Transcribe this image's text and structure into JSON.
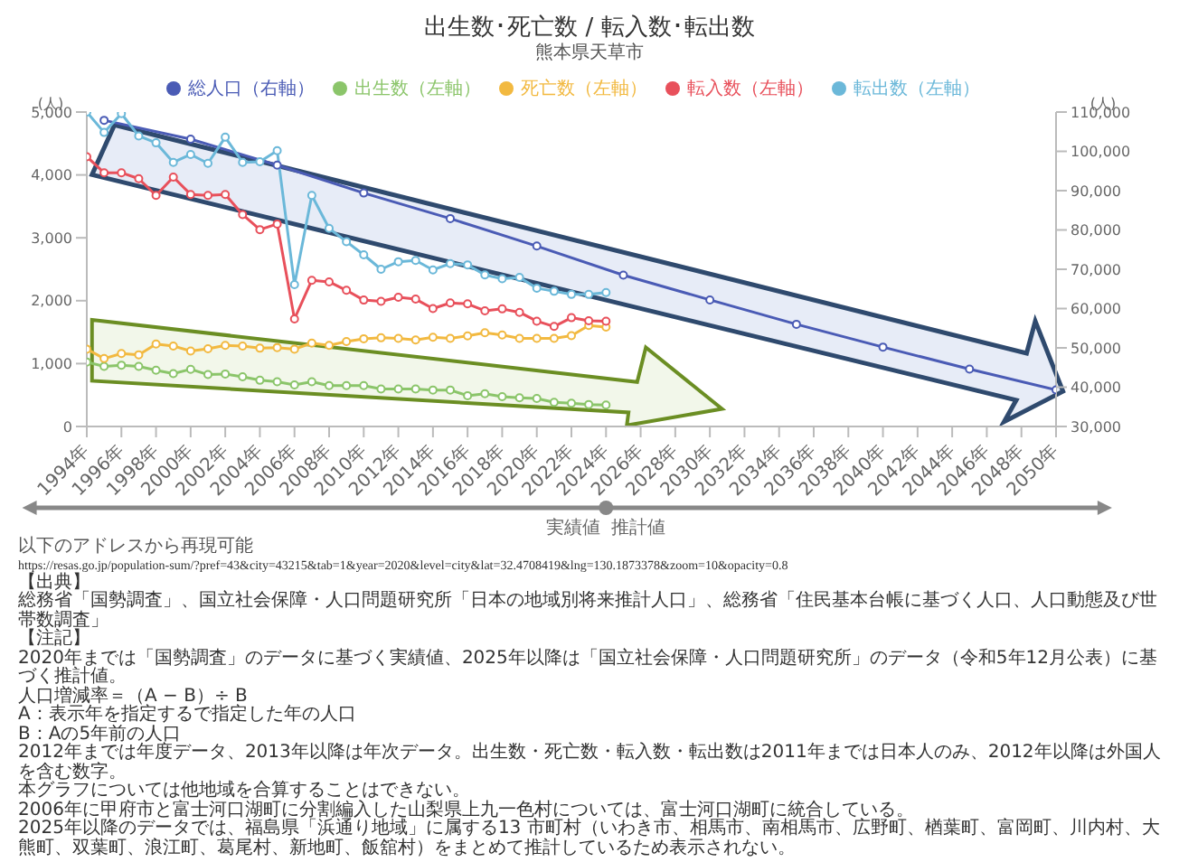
{
  "chart_data": {
    "type": "line",
    "title": "出生数･死亡数 / 転入数･転出数",
    "subtitle": "熊本県天草市",
    "ylabel": "(人)",
    "y2label": "(人)",
    "legend": "top",
    "marker": "circle",
    "grid": false,
    "xlim": [
      1994,
      2050
    ],
    "xticks": [
      {
        "value": 1994,
        "label": "1994年"
      },
      {
        "value": 1996,
        "label": "1996年"
      },
      {
        "value": 1998,
        "label": "1998年"
      },
      {
        "value": 2000,
        "label": "2000年"
      },
      {
        "value": 2002,
        "label": "2002年"
      },
      {
        "value": 2004,
        "label": "2004年"
      },
      {
        "value": 2006,
        "label": "2006年"
      },
      {
        "value": 2008,
        "label": "2008年"
      },
      {
        "value": 2010,
        "label": "2010年"
      },
      {
        "value": 2012,
        "label": "2012年"
      },
      {
        "value": 2014,
        "label": "2014年"
      },
      {
        "value": 2016,
        "label": "2016年"
      },
      {
        "value": 2018,
        "label": "2018年"
      },
      {
        "value": 2020,
        "label": "2020年"
      },
      {
        "value": 2022,
        "label": "2022年"
      },
      {
        "value": 2024,
        "label": "2024年"
      },
      {
        "value": 2026,
        "label": "2026年"
      },
      {
        "value": 2028,
        "label": "2028年"
      },
      {
        "value": 2030,
        "label": "2030年"
      },
      {
        "value": 2032,
        "label": "2032年"
      },
      {
        "value": 2034,
        "label": "2034年"
      },
      {
        "value": 2036,
        "label": "2036年"
      },
      {
        "value": 2038,
        "label": "2038年"
      },
      {
        "value": 2040,
        "label": "2040年"
      },
      {
        "value": 2042,
        "label": "2042年"
      },
      {
        "value": 2044,
        "label": "2044年"
      },
      {
        "value": 2046,
        "label": "2046年"
      },
      {
        "value": 2048,
        "label": "2048年"
      },
      {
        "value": 2050,
        "label": "2050年"
      }
    ],
    "ylim": [
      0,
      5000
    ],
    "yticks": [
      0,
      {
        "value": 1000,
        "label": "1,000"
      },
      {
        "value": 2000,
        "label": "2,000"
      },
      {
        "value": 3000,
        "label": "3,000"
      },
      {
        "value": 4000,
        "label": "4,000"
      },
      {
        "value": 5000,
        "label": "5,000"
      }
    ],
    "y2lim": [
      30000,
      110000
    ],
    "y2ticks": [
      {
        "value": 30000,
        "label": "30,000"
      },
      {
        "value": 40000,
        "label": "40,000"
      },
      {
        "value": 50000,
        "label": "50,000"
      },
      {
        "value": 60000,
        "label": "60,000"
      },
      {
        "value": 70000,
        "label": "70,000"
      },
      {
        "value": 80000,
        "label": "80,000"
      },
      {
        "value": 90000,
        "label": "90,000"
      },
      {
        "value": 100000,
        "label": "100,000"
      },
      {
        "value": 110000,
        "label": "110,000"
      }
    ],
    "series": [
      {
        "name": "総人口（右軸）",
        "color": "#4a5bb5",
        "axis": "y2",
        "x": [
          1995,
          2000,
          2005,
          2010,
          2015,
          2020,
          2025,
          2030,
          2035,
          2040,
          2045,
          2050
        ],
        "values": [
          107900,
          103100,
          96500,
          89400,
          82900,
          75900,
          68500,
          62200,
          56000,
          50200,
          44600,
          39300
        ]
      },
      {
        "name": "出生数（左軸）",
        "color": "#8bc56a",
        "x": [
          1994,
          1995,
          1996,
          1997,
          1998,
          1999,
          2000,
          2001,
          2002,
          2003,
          2004,
          2005,
          2006,
          2007,
          2008,
          2009,
          2010,
          2011,
          2012,
          2013,
          2014,
          2015,
          2016,
          2017,
          2018,
          2019,
          2020,
          2021,
          2022,
          2023,
          2024
        ],
        "values": [
          1025,
          955,
          975,
          955,
          895,
          840,
          910,
          825,
          835,
          790,
          735,
          710,
          660,
          710,
          650,
          650,
          650,
          595,
          595,
          595,
          580,
          580,
          490,
          520,
          475,
          455,
          445,
          385,
          370,
          350,
          340
        ]
      },
      {
        "name": "死亡数（左軸）",
        "color": "#f2b940",
        "x": [
          1994,
          1995,
          1996,
          1997,
          1998,
          1999,
          2000,
          2001,
          2002,
          2003,
          2004,
          2005,
          2006,
          2007,
          2008,
          2009,
          2010,
          2011,
          2012,
          2013,
          2014,
          2015,
          2016,
          2017,
          2018,
          2019,
          2020,
          2021,
          2022,
          2023,
          2024
        ],
        "values": [
          1230,
          1080,
          1160,
          1140,
          1310,
          1280,
          1200,
          1235,
          1290,
          1280,
          1245,
          1255,
          1230,
          1325,
          1290,
          1350,
          1395,
          1410,
          1400,
          1375,
          1420,
          1400,
          1440,
          1490,
          1455,
          1400,
          1400,
          1400,
          1445,
          1605,
          1580
        ]
      },
      {
        "name": "転入数（左軸）",
        "color": "#e8505b",
        "x": [
          1994,
          1995,
          1996,
          1997,
          1998,
          1999,
          2000,
          2001,
          2002,
          2003,
          2004,
          2005,
          2006,
          2007,
          2008,
          2009,
          2010,
          2011,
          2012,
          2013,
          2014,
          2015,
          2016,
          2017,
          2018,
          2019,
          2020,
          2021,
          2022,
          2023,
          2024
        ],
        "values": [
          4290,
          4035,
          4035,
          3940,
          3675,
          3965,
          3690,
          3675,
          3690,
          3370,
          3130,
          3220,
          1710,
          2325,
          2300,
          2165,
          2010,
          1990,
          2055,
          2025,
          1875,
          1965,
          1950,
          1840,
          1870,
          1815,
          1675,
          1590,
          1730,
          1680,
          1675
        ]
      },
      {
        "name": "転出数（左軸）",
        "color": "#6bb8d9",
        "x": [
          1994,
          1995,
          1996,
          1997,
          1998,
          1999,
          2000,
          2001,
          2002,
          2003,
          2004,
          2005,
          2006,
          2007,
          2008,
          2009,
          2010,
          2011,
          2012,
          2013,
          2014,
          2015,
          2016,
          2017,
          2018,
          2019,
          2020,
          2021,
          2022,
          2023,
          2024
        ],
        "values": [
          5000,
          4675,
          4975,
          4620,
          4510,
          4200,
          4325,
          4185,
          4600,
          4200,
          4210,
          4385,
          2255,
          3675,
          3150,
          2940,
          2730,
          2500,
          2620,
          2640,
          2490,
          2590,
          2570,
          2410,
          2350,
          2370,
          2200,
          2150,
          2100,
          2100,
          2130
        ]
      }
    ],
    "annotations": [
      "実績値",
      "推計値",
      "以下のアドレスから再現可能",
      "https://resas.go.jp/population-sum/?pref=43&city=43215&tab=1&year=2020&level=city&lat=32.4708419&lng=130.1873378&zoom=10&opacity=0.8",
      "【出典】",
      "総務省「国勢調査」、国立社会保障・人口問題研究所「日本の地域別将来推計人口」、総務省「住民基本台帳に基づく人口、人口動態及び世帯数調査」",
      "【注記】",
      "2020年までは「国勢調査」のデータに基づく実績値、2025年以降は「国立社会保障・人口問題研究所」のデータ（令和5年12月公表）に基づく推計値。",
      "人口増減率＝（A − B）÷ B",
      "A：表示年を指定するで指定した年の人口",
      "B：Aの5年前の人口",
      "2012年までは年度データ、2013年以降は年次データ。出生数・死亡数・転入数・転出数は2011年までは日本人のみ、2012年以降は外国人を含む数字。",
      "本グラフについては他地域を合算することはできない。",
      "2006年に甲府市と富士河口湖町に分割編入した山梨県上九一色村については、富士河口湖町に統合している。",
      "2025年以降のデータでは、福島県「浜通り地域」に属する13 市町村（いわき市、相馬市、南相馬市、広野町、楢葉町、富岡町、川内村、大熊町、双葉町、浪江町、葛尾村、新地町、飯舘村）をまとめて推計しているため表示されない。"
    ]
  }
}
